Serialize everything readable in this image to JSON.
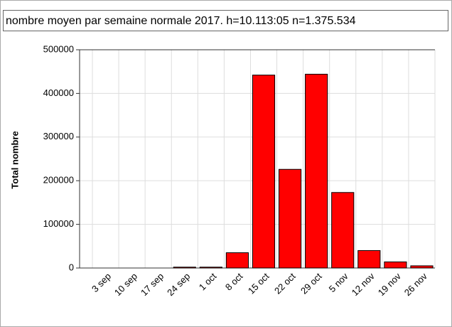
{
  "chart_data": {
    "type": "bar",
    "title": "nombre moyen par semaine normale 2017. h=10.113:05 n=1.375.534",
    "y_label": "Total nombre",
    "categories": [
      "3 sep",
      "10 sep",
      "17 sep",
      "24 sep",
      "1 oct",
      "8 oct",
      "15 oct",
      "22 oct",
      "29 oct",
      "5 nov",
      "12 nov",
      "19 nov",
      "26 nov"
    ],
    "values": [
      0,
      0,
      0,
      2000,
      2000,
      35000,
      442000,
      226000,
      444000,
      173000,
      40000,
      14000,
      5000
    ],
    "color": "#ff0000",
    "ylim": [
      0,
      500000
    ],
    "yticks": [
      0,
      100000,
      200000,
      300000,
      400000,
      500000
    ],
    "grid": true
  }
}
